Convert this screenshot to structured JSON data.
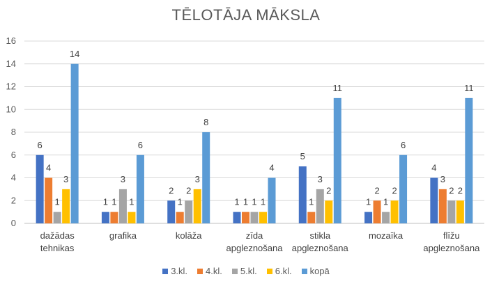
{
  "chart_data": {
    "type": "bar",
    "title": "TĒLOTĀJA MĀKSLA",
    "categories": [
      [
        "dažādas",
        "tehnikas"
      ],
      [
        "grafika"
      ],
      [
        "kolāža"
      ],
      [
        "zīda",
        "apgleznošana"
      ],
      [
        "stikla",
        "apgleznošana"
      ],
      [
        "mozaīka"
      ],
      [
        "flīžu",
        "apgleznošana"
      ]
    ],
    "series": [
      {
        "name": "3.kl.",
        "color": "#4472C4",
        "values": [
          6,
          1,
          2,
          1,
          5,
          1,
          4
        ]
      },
      {
        "name": "4.kl.",
        "color": "#ED7D31",
        "values": [
          4,
          1,
          1,
          1,
          1,
          2,
          3
        ]
      },
      {
        "name": "5.kl.",
        "color": "#A5A5A5",
        "values": [
          1,
          3,
          2,
          1,
          3,
          1,
          2
        ]
      },
      {
        "name": "6.kl.",
        "color": "#FFC000",
        "values": [
          3,
          1,
          3,
          1,
          2,
          2,
          2
        ]
      },
      {
        "name": "kopā",
        "color": "#5B9BD5",
        "values": [
          14,
          6,
          8,
          4,
          11,
          6,
          11
        ]
      }
    ],
    "ylim": [
      0,
      16
    ],
    "yticks": [
      0,
      2,
      4,
      6,
      8,
      10,
      12,
      14,
      16
    ],
    "grid": true,
    "legend_position": "bottom"
  }
}
